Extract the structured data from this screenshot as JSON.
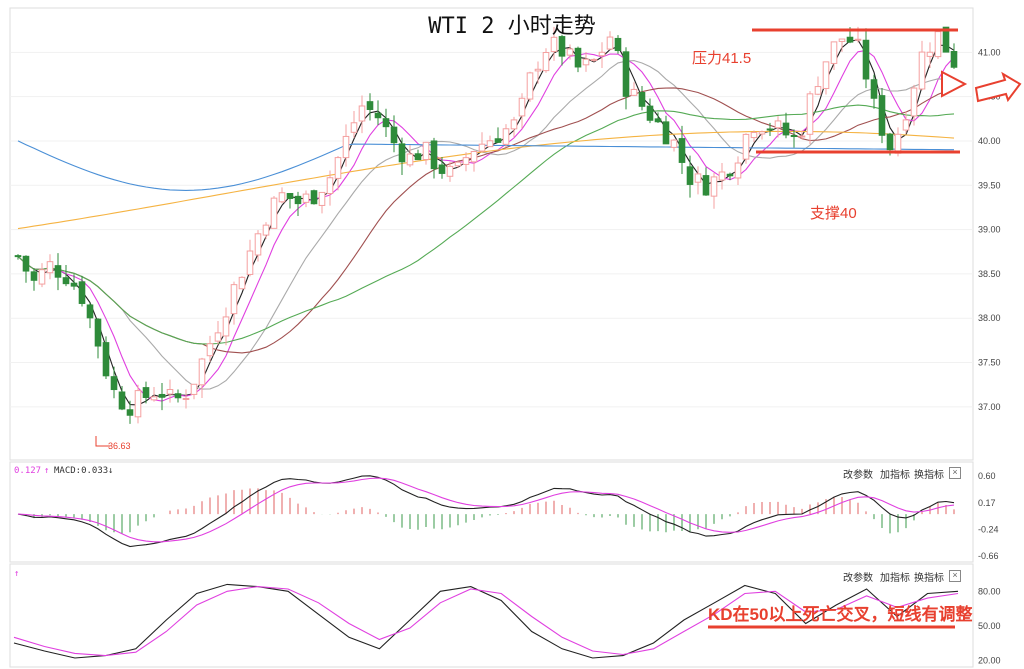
{
  "title": "WTI 2 小时走势",
  "annotations": {
    "resistance": "压力41.5",
    "support": "支撑40",
    "low_marker": "36.63",
    "kd_note": "KD在50以上死亡交叉，短线有调整"
  },
  "panel_buttons": {
    "change_params": "改参数",
    "add_indicator": "加指标",
    "switch_indicator": "换指标",
    "close": "×"
  },
  "macd_header": {
    "value": "0.127",
    "arrow_up": "↑",
    "label": "MACD:0.033",
    "arrow_down": "↓"
  },
  "kd_header": {
    "arrow_up": "↑"
  },
  "colors": {
    "up_candle": "#f4a0a0",
    "down_candle": "#2e8b3a",
    "annotation": "#e8402f",
    "ma_black": "#222222",
    "ma_magenta": "#e040e0",
    "ma_gray": "#aaaaaa",
    "ma_brown": "#a05050",
    "ma_green": "#55aa55",
    "ma_orange": "#f5b342",
    "ma_blue": "#4a8fd6"
  },
  "chart_data": [
    {
      "type": "candlestick",
      "y_ticks": [
        "41.00",
        "40.50",
        "40.00",
        "39.50",
        "39.00",
        "38.50",
        "38.00",
        "37.50",
        "37.00"
      ],
      "ylim": [
        36.4,
        41.5
      ],
      "reference_levels": [
        41.5,
        40.0
      ],
      "low": 36.63,
      "close_points": [
        38.7,
        38.4,
        38.6,
        38.5,
        38.3,
        37.8,
        37.2,
        37.0,
        37.1,
        37.2,
        37.05,
        37.2,
        37.6,
        38.0,
        38.4,
        38.8,
        39.2,
        39.4,
        39.3,
        39.4,
        39.6,
        40.0,
        40.4,
        40.3,
        40.0,
        39.8,
        39.9,
        39.7,
        39.6,
        39.9,
        40.0,
        40.1,
        40.2,
        40.8,
        41.1,
        41.0,
        40.8,
        40.9,
        41.2,
        40.6,
        40.4,
        40.2,
        40.0,
        39.6,
        39.5,
        39.6,
        39.8,
        40.2,
        40.2,
        40.1,
        40.0,
        40.6,
        41.0,
        41.2,
        41.0,
        40.3,
        39.9,
        40.4,
        41.0,
        41.2,
        40.9
      ]
    },
    {
      "type": "line",
      "name": "MACD",
      "y_ticks": [
        "0.60",
        "0.17",
        "-0.24",
        "-0.66"
      ],
      "ylim": [
        -0.72,
        0.66
      ]
    },
    {
      "type": "line",
      "name": "KD",
      "y_ticks": [
        "80.00",
        "50.00",
        "20.00"
      ],
      "ylim": [
        15,
        95
      ],
      "reference_levels": [
        50
      ],
      "k": [
        35,
        28,
        22,
        24,
        30,
        55,
        78,
        86,
        84,
        80,
        60,
        40,
        30,
        55,
        80,
        84,
        72,
        45,
        30,
        22,
        24,
        35,
        55,
        70,
        85,
        78,
        52,
        68,
        82,
        58,
        78,
        80
      ],
      "d": [
        40,
        32,
        26,
        24,
        27,
        45,
        68,
        80,
        84,
        82,
        70,
        52,
        38,
        48,
        70,
        82,
        78,
        58,
        40,
        28,
        25,
        30,
        45,
        60,
        78,
        80,
        62,
        64,
        76,
        66,
        74,
        78
      ]
    }
  ]
}
